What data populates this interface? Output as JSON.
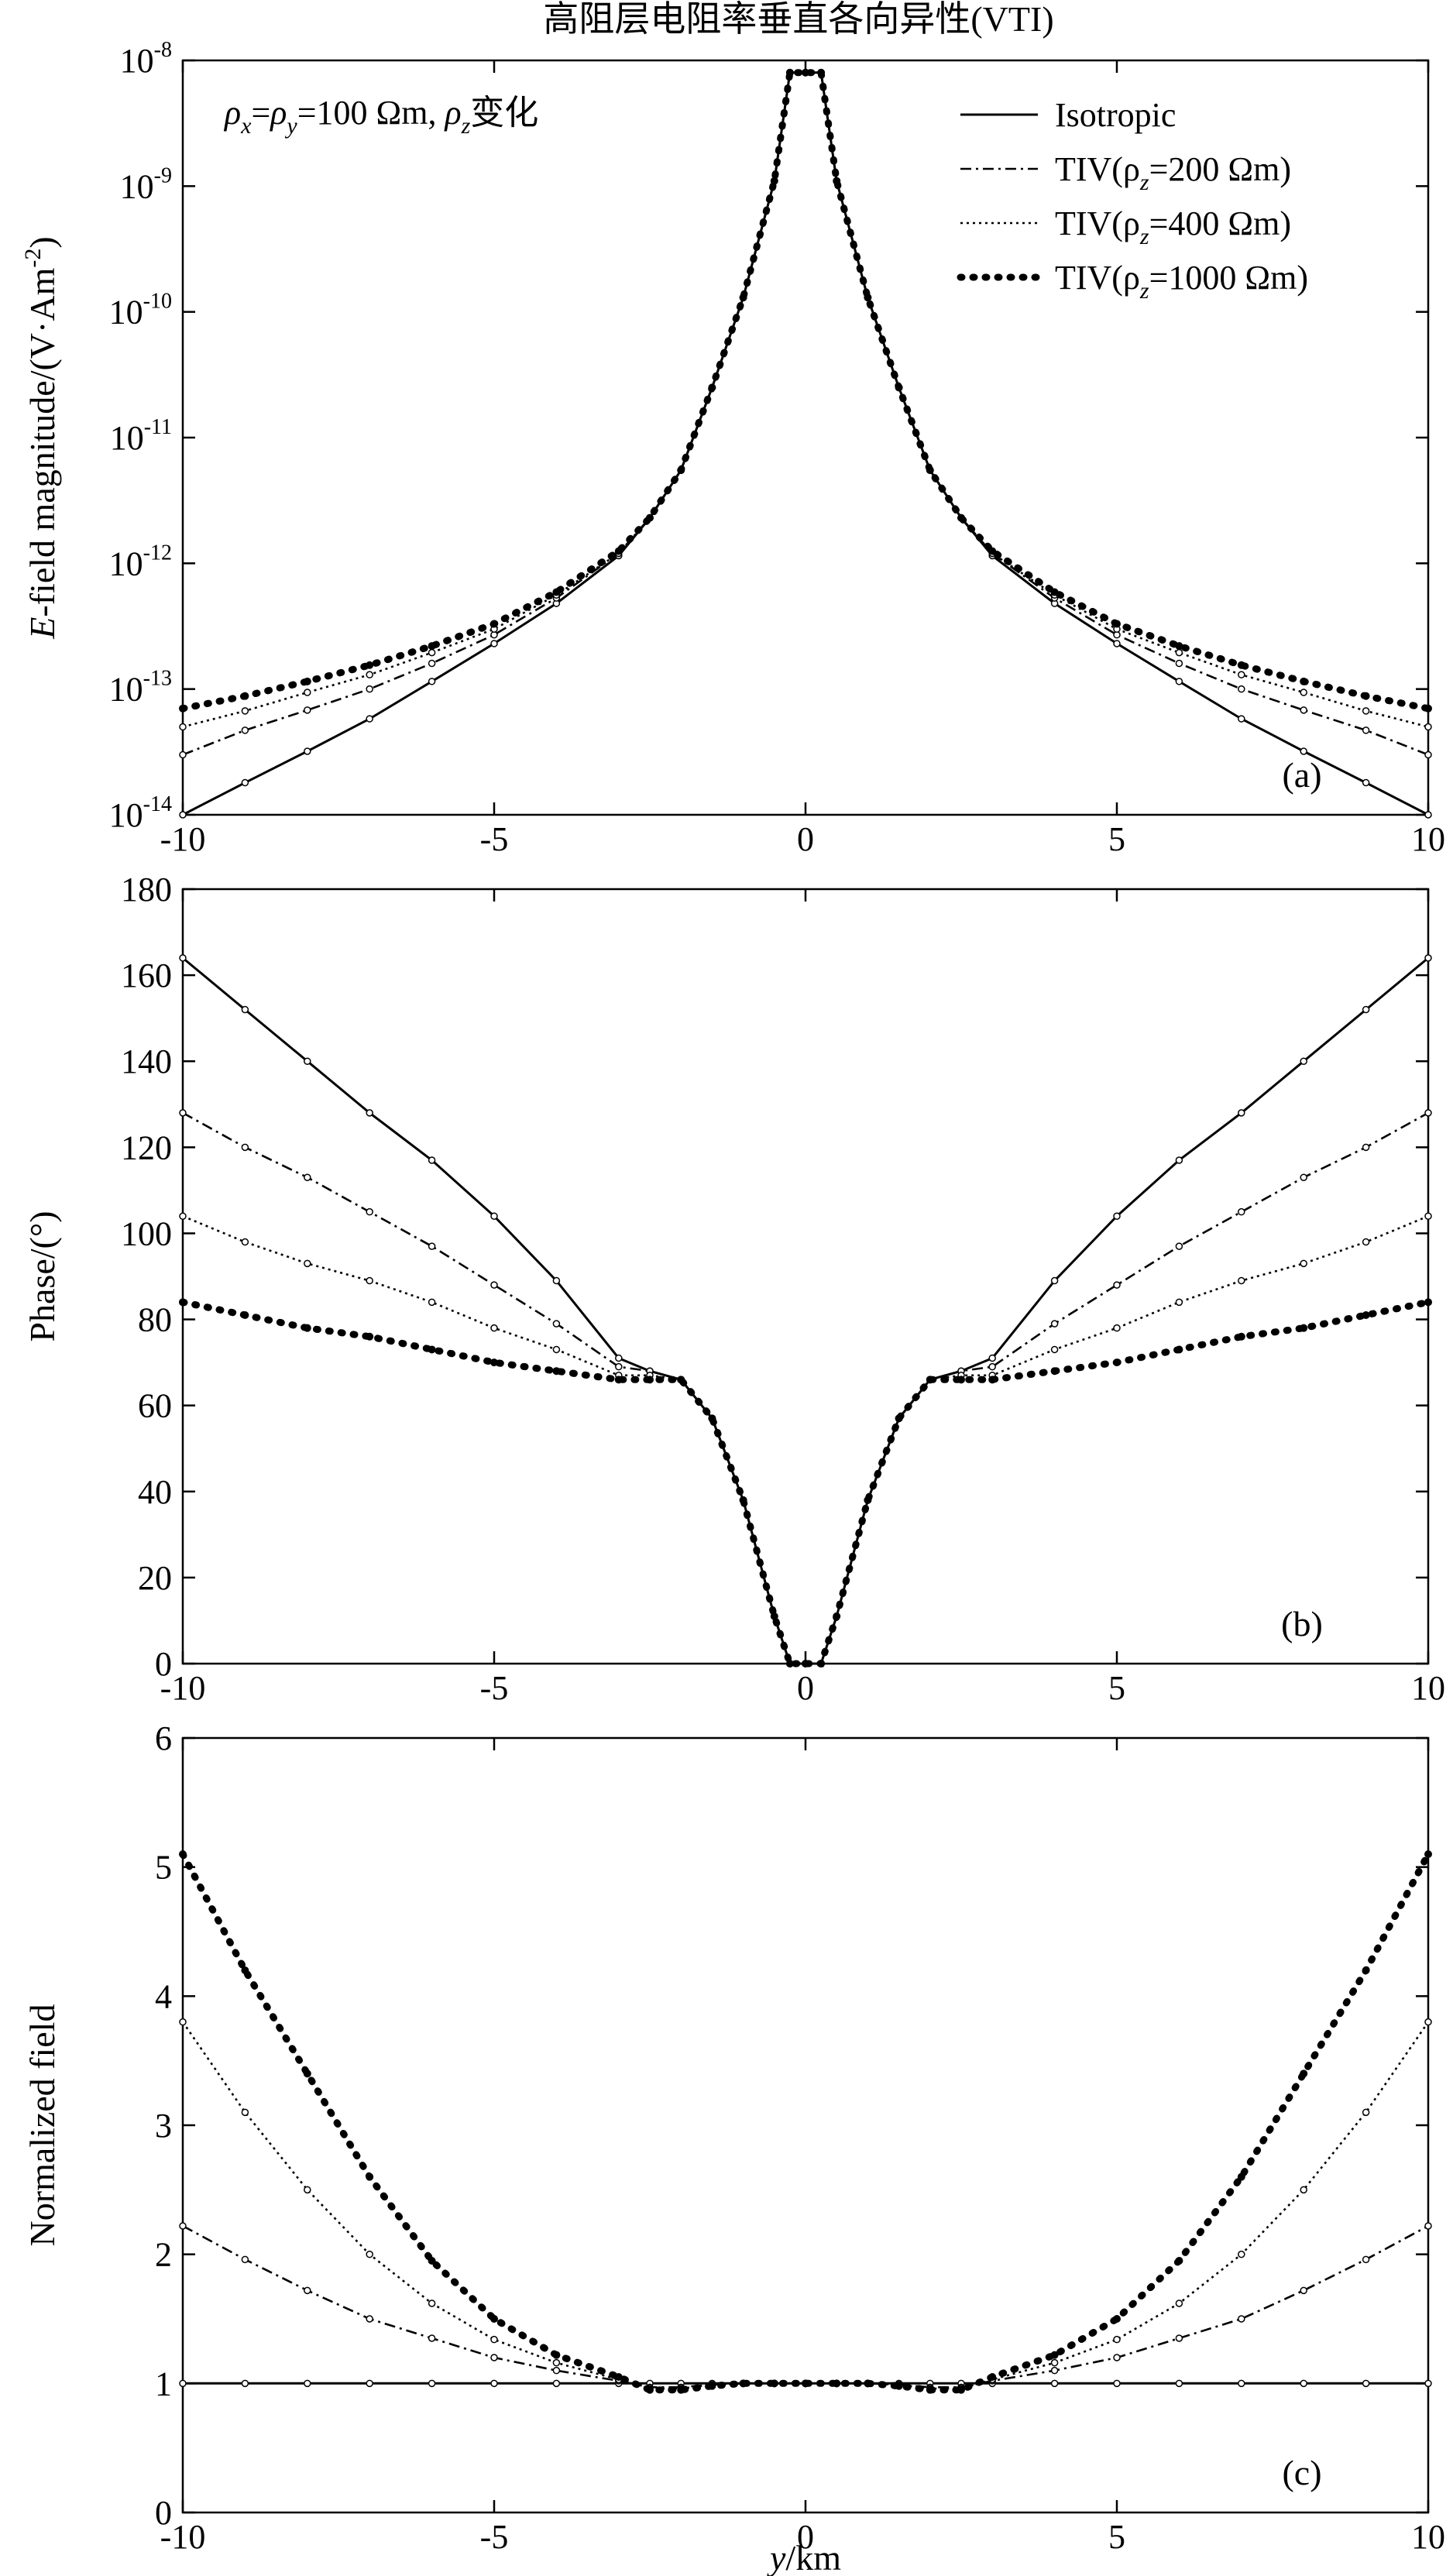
{
  "figure": {
    "title": "高阻层电阻率垂直各向异性(VTI)"
  },
  "legend": {
    "items": [
      {
        "text": "Isotropic",
        "dash": "solid"
      },
      {
        "text": "TIV(ρ",
        "sub": "z",
        "tail": "=200 Ωm)",
        "dash": "dashdot"
      },
      {
        "text": "TIV(ρ",
        "sub": "z",
        "tail": "=400 Ωm)",
        "dash": "dotted"
      },
      {
        "text": "TIV(ρ",
        "sub": "z",
        "tail": "=1000 Ωm)",
        "dash": "bigdots"
      }
    ]
  },
  "annotation": {
    "parts": [
      {
        "t": "ρ",
        "i": true
      },
      {
        "t": "x",
        "sub": true,
        "i": true
      },
      {
        "t": "="
      },
      {
        "t": "ρ",
        "i": true
      },
      {
        "t": "y",
        "sub": true,
        "i": true
      },
      {
        "t": "=100 Ωm, "
      },
      {
        "t": "ρ",
        "i": true
      },
      {
        "t": "z",
        "sub": true,
        "i": true
      },
      {
        "t": "变化"
      }
    ]
  },
  "xaxis": {
    "label_italic": "y",
    "label_rest": "/km",
    "ticks": [
      "-10",
      "-5",
      "0",
      "5",
      "10"
    ]
  },
  "chart_data": [
    {
      "panel": "(a)",
      "type": "line",
      "ylabel_italic": "E",
      "ylabel_rest": "-field magnitude/(V·Am",
      "ylabel_sup": "-2",
      "ylabel_end": ")",
      "yscale": "log",
      "xlim": [
        -10,
        10
      ],
      "ylim": [
        1e-14,
        1e-08
      ],
      "yticks": [
        {
          "base": "10",
          "exp": "-14"
        },
        {
          "base": "10",
          "exp": "-13"
        },
        {
          "base": "10",
          "exp": "-12"
        },
        {
          "base": "10",
          "exp": "-11"
        },
        {
          "base": "10",
          "exp": "-10"
        },
        {
          "base": "10",
          "exp": "-9"
        },
        {
          "base": "10",
          "exp": "-8"
        }
      ],
      "x": [
        0,
        0.25,
        0.5,
        1,
        1.5,
        2,
        2.5,
        3,
        4,
        5,
        6,
        7,
        8,
        9,
        10
      ],
      "series": [
        {
          "name": "Isotropic",
          "values": [
            8e-09,
            8e-09,
            1.1e-09,
            1.3e-10,
            2.5e-11,
            5.5e-12,
            2.3e-12,
            1.15e-12,
            4.8e-13,
            2.3e-13,
            1.15e-13,
            5.8e-14,
            3.2e-14,
            1.8e-14,
            1e-14
          ]
        },
        {
          "name": "TIV(ρz=200 Ωm)",
          "values": [
            8e-09,
            8e-09,
            1.1e-09,
            1.3e-10,
            2.5e-11,
            5.5e-12,
            2.3e-12,
            1.2e-12,
            5.3e-13,
            2.7e-13,
            1.6e-13,
            1e-13,
            6.8e-14,
            4.7e-14,
            3e-14
          ]
        },
        {
          "name": "TIV(ρz=400 Ωm)",
          "values": [
            8e-09,
            8e-09,
            1.1e-09,
            1.3e-10,
            2.5e-11,
            5.5e-12,
            2.3e-12,
            1.2e-12,
            5.6e-13,
            3e-13,
            1.95e-13,
            1.3e-13,
            9.4e-14,
            6.7e-14,
            5e-14
          ]
        },
        {
          "name": "TIV(ρz=1000 Ωm)",
          "values": [
            8e-09,
            8e-09,
            1.1e-09,
            1.3e-10,
            2.5e-11,
            5.5e-12,
            2.3e-12,
            1.25e-12,
            5.9e-13,
            3.3e-13,
            2.2e-13,
            1.55e-13,
            1.15e-13,
            8.8e-14,
            7e-14
          ]
        }
      ]
    },
    {
      "panel": "(b)",
      "type": "line",
      "ylabel": "Phase/(°)",
      "xlim": [
        -10,
        10
      ],
      "ylim": [
        0,
        180
      ],
      "yticks": [
        "0",
        "20",
        "40",
        "60",
        "80",
        "100",
        "120",
        "140",
        "160",
        "180"
      ],
      "x": [
        0,
        0.25,
        0.5,
        1,
        1.5,
        2,
        2.5,
        3,
        4,
        5,
        6,
        7,
        8,
        9,
        10
      ],
      "series": [
        {
          "name": "Isotropic",
          "values": [
            0,
            0,
            11,
            38,
            57,
            66,
            68,
            71,
            89,
            104,
            117,
            128,
            140,
            152,
            164
          ]
        },
        {
          "name": "TIV(ρz=200 Ωm)",
          "values": [
            0,
            0,
            11,
            38,
            57,
            66,
            68,
            69,
            79,
            88,
            97,
            105,
            113,
            120,
            128
          ]
        },
        {
          "name": "TIV(ρz=400 Ωm)",
          "values": [
            0,
            0,
            11,
            38,
            57,
            66,
            67,
            67,
            73,
            78,
            84,
            89,
            93,
            98,
            104
          ]
        },
        {
          "name": "TIV(ρz=1000 Ωm)",
          "values": [
            0,
            0,
            11,
            38,
            57,
            66,
            66,
            66,
            68,
            70,
            73,
            76,
            78,
            81,
            84
          ]
        }
      ]
    },
    {
      "panel": "(c)",
      "type": "line",
      "ylabel": "Normalized field",
      "xlim": [
        -10,
        10
      ],
      "ylim": [
        0,
        6
      ],
      "yticks": [
        "0",
        "1",
        "2",
        "3",
        "4",
        "5",
        "6"
      ],
      "x": [
        0,
        0.5,
        1,
        1.5,
        2,
        2.5,
        3,
        4,
        5,
        6,
        7,
        8,
        9,
        10
      ],
      "series": [
        {
          "name": "Isotropic",
          "values": [
            1,
            1,
            1,
            1,
            1,
            1,
            1,
            1,
            1,
            1,
            1,
            1,
            1,
            1
          ]
        },
        {
          "name": "TIV(ρz=200 Ωm)",
          "values": [
            1,
            1,
            1,
            0.99,
            0.97,
            0.97,
            1.02,
            1.1,
            1.2,
            1.35,
            1.5,
            1.72,
            1.96,
            2.22
          ]
        },
        {
          "name": "TIV(ρz=400 Ωm)",
          "values": [
            1,
            1,
            1,
            0.99,
            0.96,
            0.96,
            1.03,
            1.16,
            1.34,
            1.62,
            2.0,
            2.5,
            3.1,
            3.8
          ]
        },
        {
          "name": "TIV(ρz=1000 Ωm)",
          "values": [
            1,
            1,
            1,
            0.98,
            0.95,
            0.95,
            1.05,
            1.22,
            1.5,
            1.95,
            2.6,
            3.4,
            4.2,
            5.1
          ]
        }
      ]
    }
  ]
}
